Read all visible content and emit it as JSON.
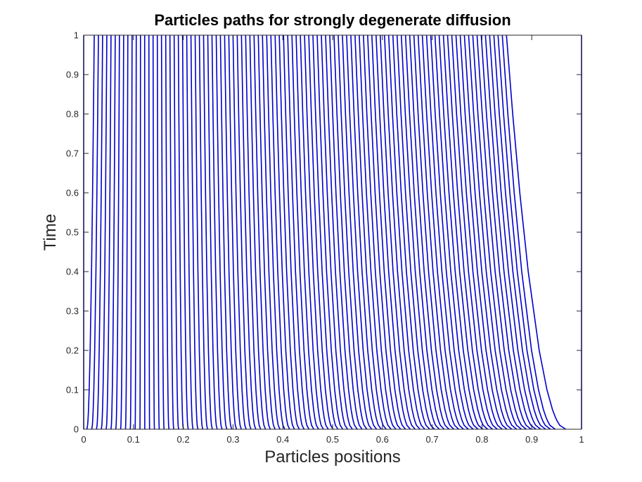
{
  "chart_data": {
    "type": "line",
    "title": "Particles paths for strongly degenerate diffusion",
    "xlabel": "Particles positions",
    "ylabel": "Time",
    "xlim": [
      0,
      1
    ],
    "ylim": [
      0,
      1
    ],
    "xticks": [
      0,
      0.1,
      0.2,
      0.3,
      0.4,
      0.5,
      0.6,
      0.7,
      0.8,
      0.9,
      1
    ],
    "xtick_labels": [
      "0",
      "0.1",
      "0.2",
      "0.3",
      "0.4",
      "0.5",
      "0.6",
      "0.7",
      "0.8",
      "0.9",
      "1"
    ],
    "yticks": [
      0,
      0.1,
      0.2,
      0.3,
      0.4,
      0.5,
      0.6,
      0.7,
      0.8,
      0.9,
      1
    ],
    "ytick_labels": [
      "0",
      "0.1",
      "0.2",
      "0.3",
      "0.4",
      "0.5",
      "0.6",
      "0.7",
      "0.8",
      "0.9",
      "1"
    ],
    "grid": false,
    "line_color": "#0000cc",
    "particle_count": 101,
    "t": [
      0,
      0.01,
      0.02,
      0.03,
      0.05,
      0.1,
      0.2,
      0.4,
      0.6,
      0.8,
      1
    ],
    "x_start": [
      0,
      0.0064,
      0.0161,
      0.0257,
      0.0354,
      0.0451,
      0.0548,
      0.0645,
      0.0742,
      0.0839,
      0.0936,
      0.1033,
      0.113,
      0.1227,
      0.1324,
      0.1421,
      0.1518,
      0.1615,
      0.1712,
      0.1809,
      0.1906,
      0.2003,
      0.21,
      0.2197,
      0.2294,
      0.2391,
      0.2488,
      0.2585,
      0.2682,
      0.2779,
      0.2876,
      0.2973,
      0.307,
      0.3167,
      0.3264,
      0.3361,
      0.3458,
      0.3555,
      0.3652,
      0.3749,
      0.3846,
      0.3943,
      0.404,
      0.4137,
      0.4234,
      0.4331,
      0.4428,
      0.4525,
      0.4622,
      0.4719,
      0.4816,
      0.4913,
      0.501,
      0.5107,
      0.5204,
      0.5301,
      0.5398,
      0.5495,
      0.5592,
      0.5689,
      0.5786,
      0.5883,
      0.598,
      0.6077,
      0.6174,
      0.6271,
      0.6368,
      0.6465,
      0.6562,
      0.6659,
      0.6756,
      0.6853,
      0.695,
      0.7047,
      0.7144,
      0.7241,
      0.7338,
      0.7435,
      0.7532,
      0.7629,
      0.7726,
      0.7823,
      0.792,
      0.8017,
      0.8114,
      0.8211,
      0.8308,
      0.8405,
      0.8502,
      0.8599,
      0.8696,
      0.8793,
      0.889,
      0.8987,
      0.9084,
      0.9181,
      0.9278,
      0.9375,
      0.9472,
      0.9682,
      1
    ],
    "x_end": [
      0,
      0.0212,
      0.0296,
      0.038,
      0.0465,
      0.0549,
      0.0634,
      0.0718,
      0.0803,
      0.0887,
      0.0972,
      0.1056,
      0.1141,
      0.1225,
      0.131,
      0.1394,
      0.1479,
      0.1563,
      0.1648,
      0.1732,
      0.1817,
      0.1901,
      0.1986,
      0.207,
      0.2155,
      0.2239,
      0.2324,
      0.2408,
      0.2493,
      0.2577,
      0.2662,
      0.2746,
      0.2831,
      0.2915,
      0.3,
      0.3084,
      0.3169,
      0.3253,
      0.3338,
      0.3422,
      0.3507,
      0.3591,
      0.3676,
      0.376,
      0.3845,
      0.3929,
      0.4014,
      0.4098,
      0.4183,
      0.4267,
      0.4352,
      0.4436,
      0.4521,
      0.4605,
      0.469,
      0.4774,
      0.4859,
      0.4943,
      0.5028,
      0.5112,
      0.5197,
      0.5281,
      0.5366,
      0.545,
      0.5535,
      0.5619,
      0.5704,
      0.5788,
      0.5873,
      0.5957,
      0.6042,
      0.6126,
      0.6211,
      0.6295,
      0.638,
      0.6464,
      0.6549,
      0.6633,
      0.6718,
      0.6802,
      0.6887,
      0.6971,
      0.7056,
      0.714,
      0.7225,
      0.7309,
      0.7394,
      0.7478,
      0.7563,
      0.7647,
      0.7732,
      0.7816,
      0.7901,
      0.7985,
      0.807,
      0.8154,
      0.8239,
      0.8323,
      0.8408,
      0.8492,
      1
    ]
  }
}
